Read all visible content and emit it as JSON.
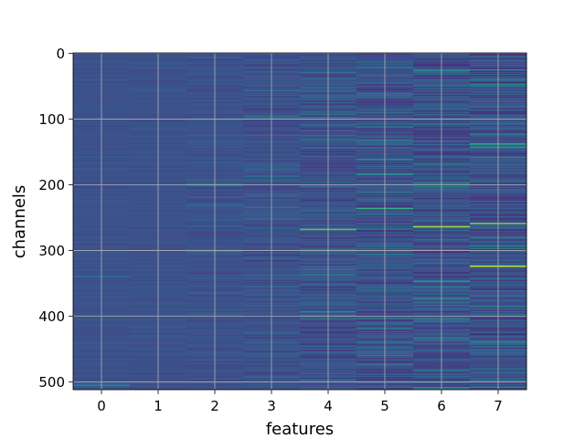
{
  "chart_data": {
    "type": "heatmap",
    "title": "",
    "xlabel": "features",
    "ylabel": "channels",
    "x_ticks": [
      0,
      1,
      2,
      3,
      4,
      5,
      6,
      7
    ],
    "y_ticks": [
      0,
      100,
      200,
      300,
      400,
      500
    ],
    "xlim": [
      -0.5,
      7.5
    ],
    "ylim": [
      511.5,
      -0.5
    ],
    "y_inverted": true,
    "grid": true,
    "colormap": "viridis",
    "n_rows": 512,
    "n_cols": 8,
    "column_spread": [
      0.02,
      0.025,
      0.045,
      0.07,
      0.09,
      0.11,
      0.12,
      0.13
    ],
    "highlights": [
      {
        "x": 4,
        "y": 268,
        "value": 0.72
      },
      {
        "x": 5,
        "y": 236,
        "value": 0.65
      },
      {
        "x": 6,
        "y": 264,
        "value": 0.85
      },
      {
        "x": 7,
        "y": 259,
        "value": 0.78
      },
      {
        "x": 7,
        "y": 324,
        "value": 0.88
      },
      {
        "x": 7,
        "y": 138,
        "value": 0.6
      },
      {
        "x": 5,
        "y": 184,
        "value": 0.55
      },
      {
        "x": 6,
        "y": 26,
        "value": 0.5
      },
      {
        "x": 4,
        "y": 393,
        "value": 0.45
      },
      {
        "x": 2,
        "y": 200,
        "value": 0.45
      },
      {
        "x": 0,
        "y": 505,
        "value": 0.45
      },
      {
        "x": 0,
        "y": 340,
        "value": 0.38
      }
    ]
  }
}
